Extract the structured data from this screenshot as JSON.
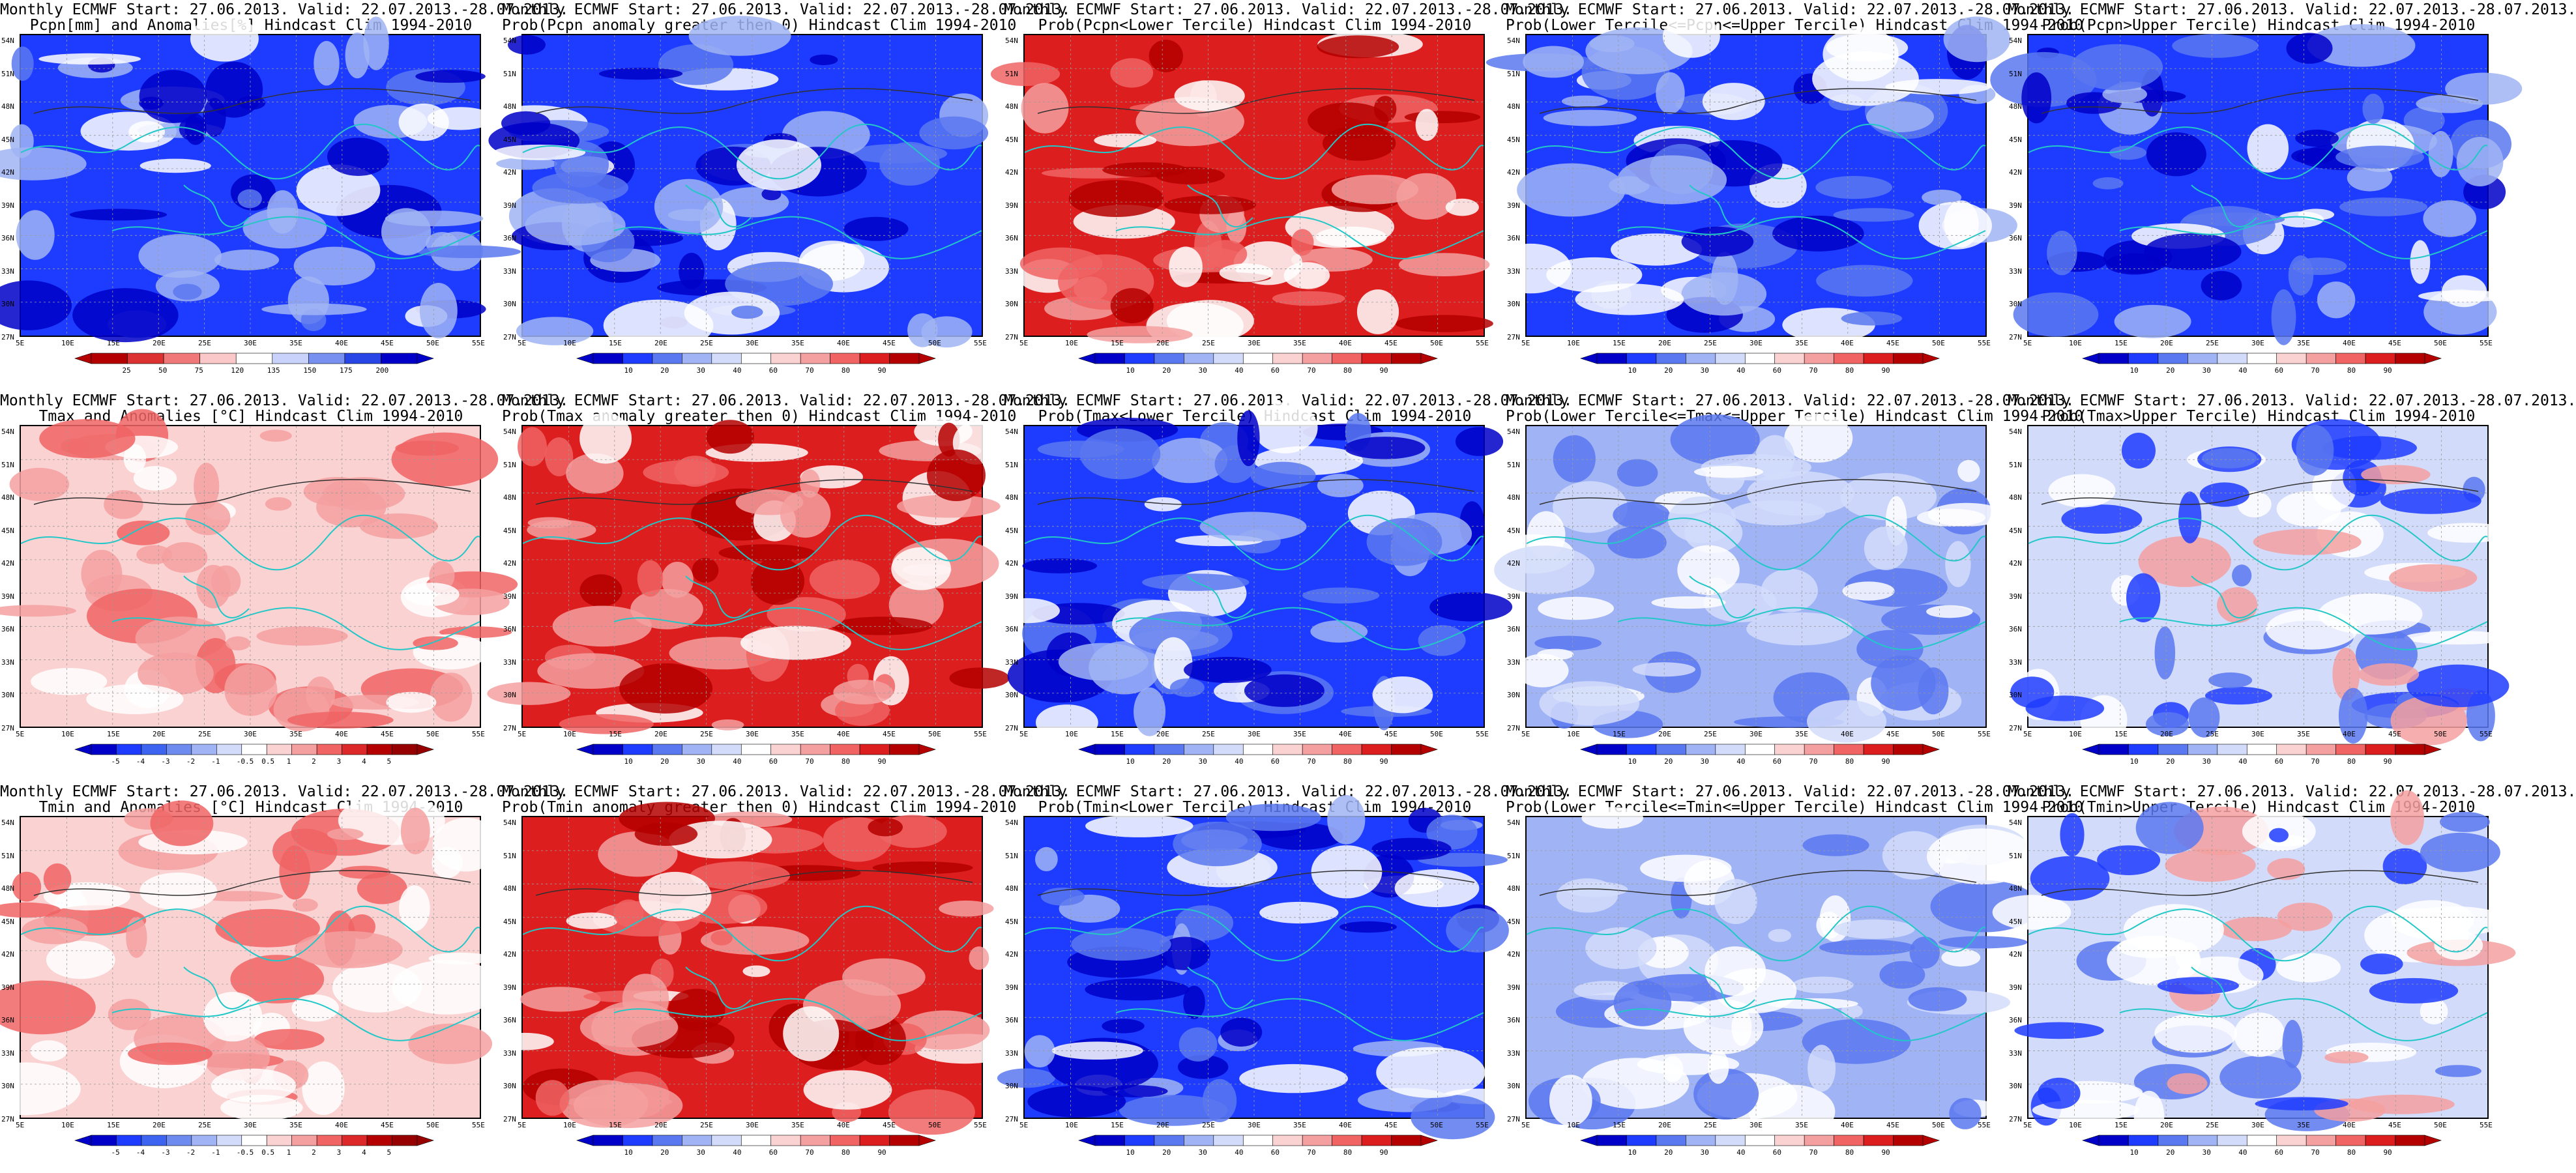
{
  "figure": {
    "lat_labels": [
      "54N",
      "51N",
      "48N",
      "45N",
      "42N",
      "39N",
      "36N",
      "33N",
      "30N",
      "27N"
    ],
    "lon_labels": [
      "5E",
      "10E",
      "15E",
      "20E",
      "25E",
      "30E",
      "35E",
      "40E",
      "45E",
      "50E",
      "55E"
    ],
    "colors": {
      "map_background": "#ffffff",
      "coastline": "#22c7c7",
      "contour": "#303030",
      "grid": "#9a9a9a"
    }
  },
  "panels": [
    {
      "id": "pcpn-anom",
      "title1": "Monthly ECMWF Start: 27.06.2013. Valid: 22.07.2013.-28.07.2013.",
      "title2": "Pcpn[mm] and Anomalies[%] Hindcast Clim 1994-2010",
      "scale": "precip_pct",
      "palette": "pcpn",
      "tone": "blue"
    },
    {
      "id": "pcpn-prob-pos",
      "title1": "Monthly ECMWF Start: 27.06.2013. Valid: 22.07.2013.-28.07.2013.",
      "title2": "Prob(Pcpn anomaly greater then 0) Hindcast Clim 1994-2010",
      "scale": "prob_a",
      "palette": "prob",
      "tone": "blue"
    },
    {
      "id": "pcpn-prob-lower",
      "title1": "Monthly ECMWF Start: 27.06.2013. Valid: 22.07.2013.-28.07.2013.",
      "title2": "Prob(Pcpn<Lower Tercile) Hindcast Clim 1994-2010",
      "scale": "prob_b",
      "palette": "prob",
      "tone": "red"
    },
    {
      "id": "pcpn-prob-mid",
      "title1": "Monthly ECMWF Start: 27.06.2013. Valid: 22.07.2013.-28.07.2013.",
      "title2": "Prob(Lower Tercile<=Pcpn<=Upper Tercile) Hindcast Clim 1994-2010",
      "scale": "prob_b",
      "palette": "prob",
      "tone": "blue"
    },
    {
      "id": "pcpn-prob-upper",
      "title1": "Monthly ECMWF Start: 27.06.2013. Valid: 22.07.2013.-28.07.2013.",
      "title2": "Prob(Pcpn>Upper Tercile) Hindcast Clim 1994-2010",
      "scale": "prob_b",
      "palette": "prob",
      "tone": "blue"
    },
    {
      "id": "tmax-anom",
      "title1": "Monthly ECMWF Start: 27.06.2013. Valid: 22.07.2013.-28.07.2013.",
      "title2": "Tmax and Anomalies [°C] Hindcast Clim 1994-2010",
      "scale": "temp",
      "palette": "anom",
      "tone": "light-red"
    },
    {
      "id": "tmax-prob-pos",
      "title1": "Monthly ECMWF Start: 27.06.2013. Valid: 22.07.2013.-28.07.2013.",
      "title2": "Prob(Tmax anomaly greater then 0) Hindcast Clim 1994-2010",
      "scale": "prob_a",
      "palette": "prob",
      "tone": "red"
    },
    {
      "id": "tmax-prob-lower",
      "title1": "Monthly ECMWF Start: 27.06.2013. Valid: 22.07.2013.-28.07.2013.",
      "title2": "Prob(Tmax<Lower Tercile) Hindcast Clim 1994-2010",
      "scale": "prob_b",
      "palette": "prob",
      "tone": "blue"
    },
    {
      "id": "tmax-prob-mid",
      "title1": "Monthly ECMWF Start: 27.06.2013. Valid: 22.07.2013.-28.07.2013.",
      "title2": "Prob(Lower Tercile<=Tmax<=Upper Tercile) Hindcast Clim 1994-2010",
      "scale": "prob_b",
      "palette": "prob",
      "tone": "light-blue"
    },
    {
      "id": "tmax-prob-upper",
      "title1": "Monthly ECMWF Start: 27.06.2013. Valid: 22.07.2013.-28.07.2013.",
      "title2": "Prob(Tmax>Upper Tercile) Hindcast Clim 1994-2010",
      "scale": "prob_b",
      "palette": "prob",
      "tone": "mixed"
    },
    {
      "id": "tmin-anom",
      "title1": "Monthly ECMWF Start: 27.06.2013. Valid: 22.07.2013.-28.07.2013.",
      "title2": "Tmin and Anomalies [°C] Hindcast Clim 1994-2010",
      "scale": "temp",
      "palette": "anom",
      "tone": "light-red"
    },
    {
      "id": "tmin-prob-pos",
      "title1": "Monthly ECMWF Start: 27.06.2013. Valid: 22.07.2013.-28.07.2013.",
      "title2": "Prob(Tmin anomaly greater then 0) Hindcast Clim 1994-2010",
      "scale": "prob_a",
      "palette": "prob",
      "tone": "red"
    },
    {
      "id": "tmin-prob-lower",
      "title1": "Monthly ECMWF Start: 27.06.2013. Valid: 22.07.2013.-28.07.2013.",
      "title2": "Prob(Tmin<Lower Tercile) Hindcast Clim 1994-2010",
      "scale": "prob_b",
      "palette": "prob",
      "tone": "blue"
    },
    {
      "id": "tmin-prob-mid",
      "title1": "Monthly ECMWF Start: 27.06.2013. Valid: 22.07.2013.-28.07.2013.",
      "title2": "Prob(Lower Tercile<=Tmin<=Upper Tercile) Hindcast Clim 1994-2010",
      "scale": "prob_b",
      "palette": "prob",
      "tone": "light-blue"
    },
    {
      "id": "tmin-prob-upper",
      "title1": "Monthly ECMWF Start: 27.06.2013. Valid: 22.07.2013.-28.07.2013.",
      "title2": "Prob(Tmin>Upper Tercile) Hindcast Clim 1994-2010",
      "scale": "prob_b",
      "palette": "prob",
      "tone": "mixed"
    }
  ],
  "colorscales": {
    "precip_pct": [
      "25",
      "50",
      "75",
      "120",
      "135",
      "150",
      "175",
      "200"
    ],
    "prob_a": [
      "10",
      "20",
      "30",
      "40",
      "60",
      "70",
      "80",
      "90"
    ],
    "prob_b": [
      "10",
      "20",
      "30",
      "40",
      "60",
      "70",
      "80",
      "90"
    ],
    "temp": [
      "-5",
      "-4",
      "-3",
      "-2",
      "-1",
      "-0.5",
      "0.5",
      "1",
      "2",
      "3",
      "4",
      "5"
    ]
  },
  "palettes": {
    "prob": [
      "#0000c8",
      "#1e3cff",
      "#5a78f0",
      "#a0b4f5",
      "#d2dcfa",
      "#ffffff",
      "#fad2d2",
      "#f5a0a0",
      "#f06464",
      "#dc1e1e",
      "#b40000"
    ],
    "pcpn": [
      "#b40000",
      "#dc3232",
      "#f07878",
      "#fac8c8",
      "#ffffff",
      "#c8d2fa",
      "#7890f0",
      "#2846e6",
      "#0000c8"
    ],
    "anom": [
      "#0000c8",
      "#1e3cff",
      "#3c64f0",
      "#6e8cf0",
      "#a0b4f5",
      "#d2dcfa",
      "#ffffff",
      "#fad2d2",
      "#f5a0a0",
      "#f06464",
      "#dc2828",
      "#b40000",
      "#960000"
    ]
  },
  "tones": {
    "blue": {
      "base": "#1e3cff",
      "blob": [
        "#0000c8",
        "#5a78f0",
        "#a0b4f5",
        "#ffffff"
      ]
    },
    "red": {
      "base": "#dc1e1e",
      "blob": [
        "#b40000",
        "#f06464",
        "#f5a0a0",
        "#ffffff"
      ]
    },
    "light-red": {
      "base": "#fad2d2",
      "blob": [
        "#f5a0a0",
        "#ffffff",
        "#f06464"
      ]
    },
    "light-blue": {
      "base": "#a0b4f5",
      "blob": [
        "#d2dcfa",
        "#ffffff",
        "#5a78f0"
      ]
    },
    "mixed": {
      "base": "#d2dcfa",
      "blob": [
        "#5a78f0",
        "#ffffff",
        "#f5a0a0",
        "#1e3cff"
      ]
    }
  }
}
